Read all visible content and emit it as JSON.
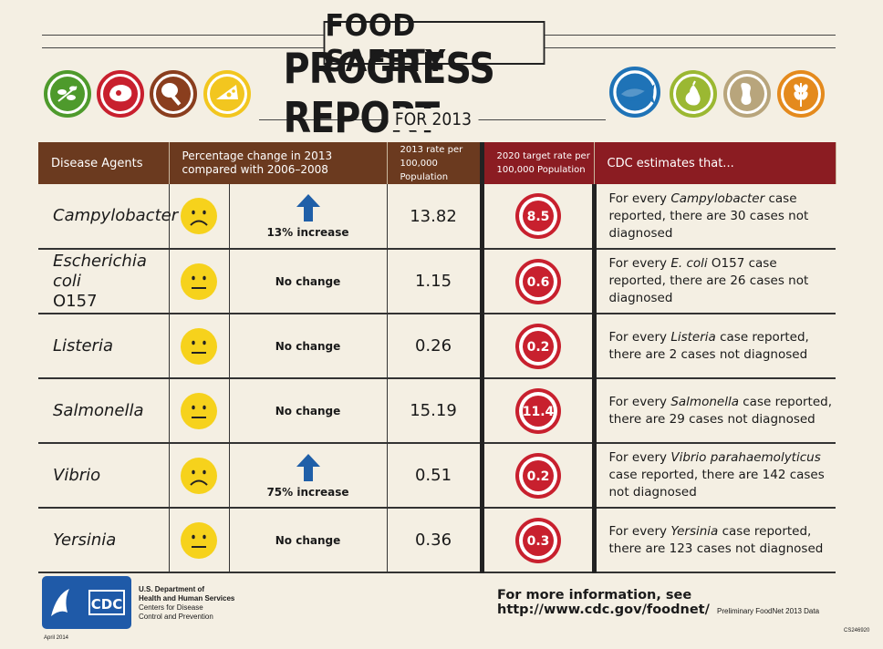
{
  "title": {
    "line1": "FOOD SAFETY",
    "line2": "PROGRESS REPORT",
    "line3": "FOR 2013"
  },
  "icons": [
    "sprout-icon",
    "meat-icon",
    "poultry-leg-icon",
    "cheese-icon",
    "fish-icon",
    "pear-icon",
    "peanut-icon",
    "grain-icon"
  ],
  "colors": {
    "green": "#4e9a2c",
    "red": "#c8202e",
    "brown": "#8a3e1e",
    "yellow": "#f2c61f",
    "blue": "#1f73b7",
    "lime": "#9bb832",
    "tan": "#b8a57c",
    "orange": "#e48a1d",
    "header_brown": "#6b3a1f",
    "header_red": "#8b1c22"
  },
  "table": {
    "headers": {
      "agent": "Disease Agents",
      "pct": "Percentage change in 2013 compared with 2006–2008",
      "rate": "2013 rate per 100,000 Population",
      "target": "2020 target rate per 100,000 Population",
      "est": "CDC estimates that..."
    },
    "rows": [
      {
        "agent": "Campylobacter",
        "agent_cont": "",
        "face": "sad",
        "change": "13% increase",
        "increase": true,
        "rate": "13.82",
        "target": "8.5",
        "est_pre": "For every ",
        "est_em": "Campylobacter",
        "est_post": " case reported, there are 30 cases not diagnosed"
      },
      {
        "agent": "Escherichia coli",
        "agent_cont": "O157",
        "face": "neutral",
        "change": "No change",
        "increase": false,
        "rate": "1.15",
        "target": "0.6",
        "est_pre": "For every ",
        "est_em": "E. coli",
        "est_post": " O157 case reported, there are 26 cases not diagnosed"
      },
      {
        "agent": "Listeria",
        "agent_cont": "",
        "face": "neutral",
        "change": "No change",
        "increase": false,
        "rate": "0.26",
        "target": "0.2",
        "est_pre": "For every ",
        "est_em": "Listeria",
        "est_post": " case reported, there are 2 cases not diagnosed"
      },
      {
        "agent": "Salmonella",
        "agent_cont": "",
        "face": "neutral",
        "change": "No change",
        "increase": false,
        "rate": "15.19",
        "target": "11.4",
        "est_pre": "For every ",
        "est_em": "Salmonella",
        "est_post": " case reported, there are 29 cases not diagnosed"
      },
      {
        "agent": "Vibrio",
        "agent_cont": "",
        "face": "sad",
        "change": "75% increase",
        "increase": true,
        "rate": "0.51",
        "target": "0.2",
        "est_pre": "For every ",
        "est_em": "Vibrio parahaemolyticus",
        "est_post": " case reported, there are 142 cases not diagnosed"
      },
      {
        "agent": "Yersinia",
        "agent_cont": "",
        "face": "neutral",
        "change": "No change",
        "increase": false,
        "rate": "0.36",
        "target": "0.3",
        "est_pre": "For every ",
        "est_em": "Yersinia",
        "est_post": " case reported, there are 123 cases not diagnosed"
      }
    ]
  },
  "footer": {
    "hhs_line1": "U.S. Department of",
    "hhs_line2": "Health and Human Services",
    "hhs_line3": "Centers for Disease",
    "hhs_line4": "Control and Prevention",
    "logo_text": "CDC",
    "more_info": "For more information, see http://www.cdc.gov/foodnet/",
    "prelim": "Preliminary FoodNet 2013 Data",
    "date": "April 2014",
    "code": "CS246920"
  }
}
